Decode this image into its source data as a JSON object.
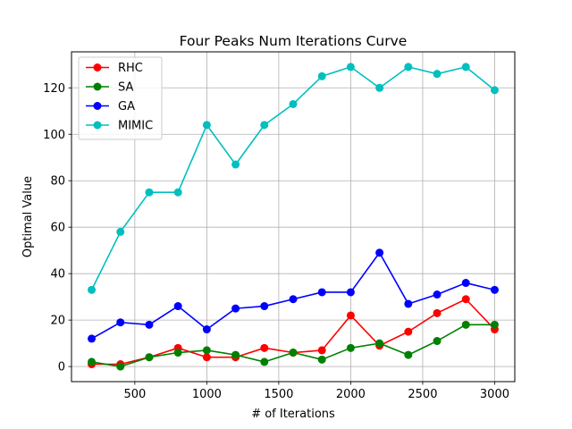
{
  "chart_data": {
    "type": "line",
    "title": "Four Peaks Num Iterations Curve",
    "xlabel": "# of Iterations",
    "ylabel": "Optimal Value",
    "xlim": [
      60,
      3140
    ],
    "ylim": [
      -6.5,
      135.5
    ],
    "xticks": [
      500,
      1000,
      1500,
      2000,
      2500,
      3000
    ],
    "yticks": [
      0,
      20,
      40,
      60,
      80,
      100,
      120
    ],
    "grid": true,
    "legend_position": "top-left",
    "x": [
      200,
      400,
      600,
      800,
      1000,
      1200,
      1400,
      1600,
      1800,
      2000,
      2200,
      2400,
      2600,
      2800,
      3000
    ],
    "series": [
      {
        "name": "RHC",
        "color": "#ff0000",
        "values": [
          1,
          1,
          4,
          8,
          4,
          4,
          8,
          6,
          7,
          22,
          9,
          15,
          23,
          29,
          16
        ]
      },
      {
        "name": "SA",
        "color": "#008000",
        "values": [
          2,
          0,
          4,
          6,
          7,
          5,
          2,
          6,
          3,
          8,
          10,
          5,
          11,
          18,
          18
        ]
      },
      {
        "name": "GA",
        "color": "#0000ff",
        "values": [
          12,
          19,
          18,
          26,
          16,
          25,
          26,
          29,
          32,
          32,
          49,
          27,
          31,
          36,
          33
        ]
      },
      {
        "name": "MIMIC",
        "color": "#00bfbf",
        "values": [
          33,
          58,
          75,
          75,
          104,
          87,
          104,
          113,
          125,
          129,
          120,
          129,
          126,
          129,
          119
        ]
      }
    ]
  }
}
